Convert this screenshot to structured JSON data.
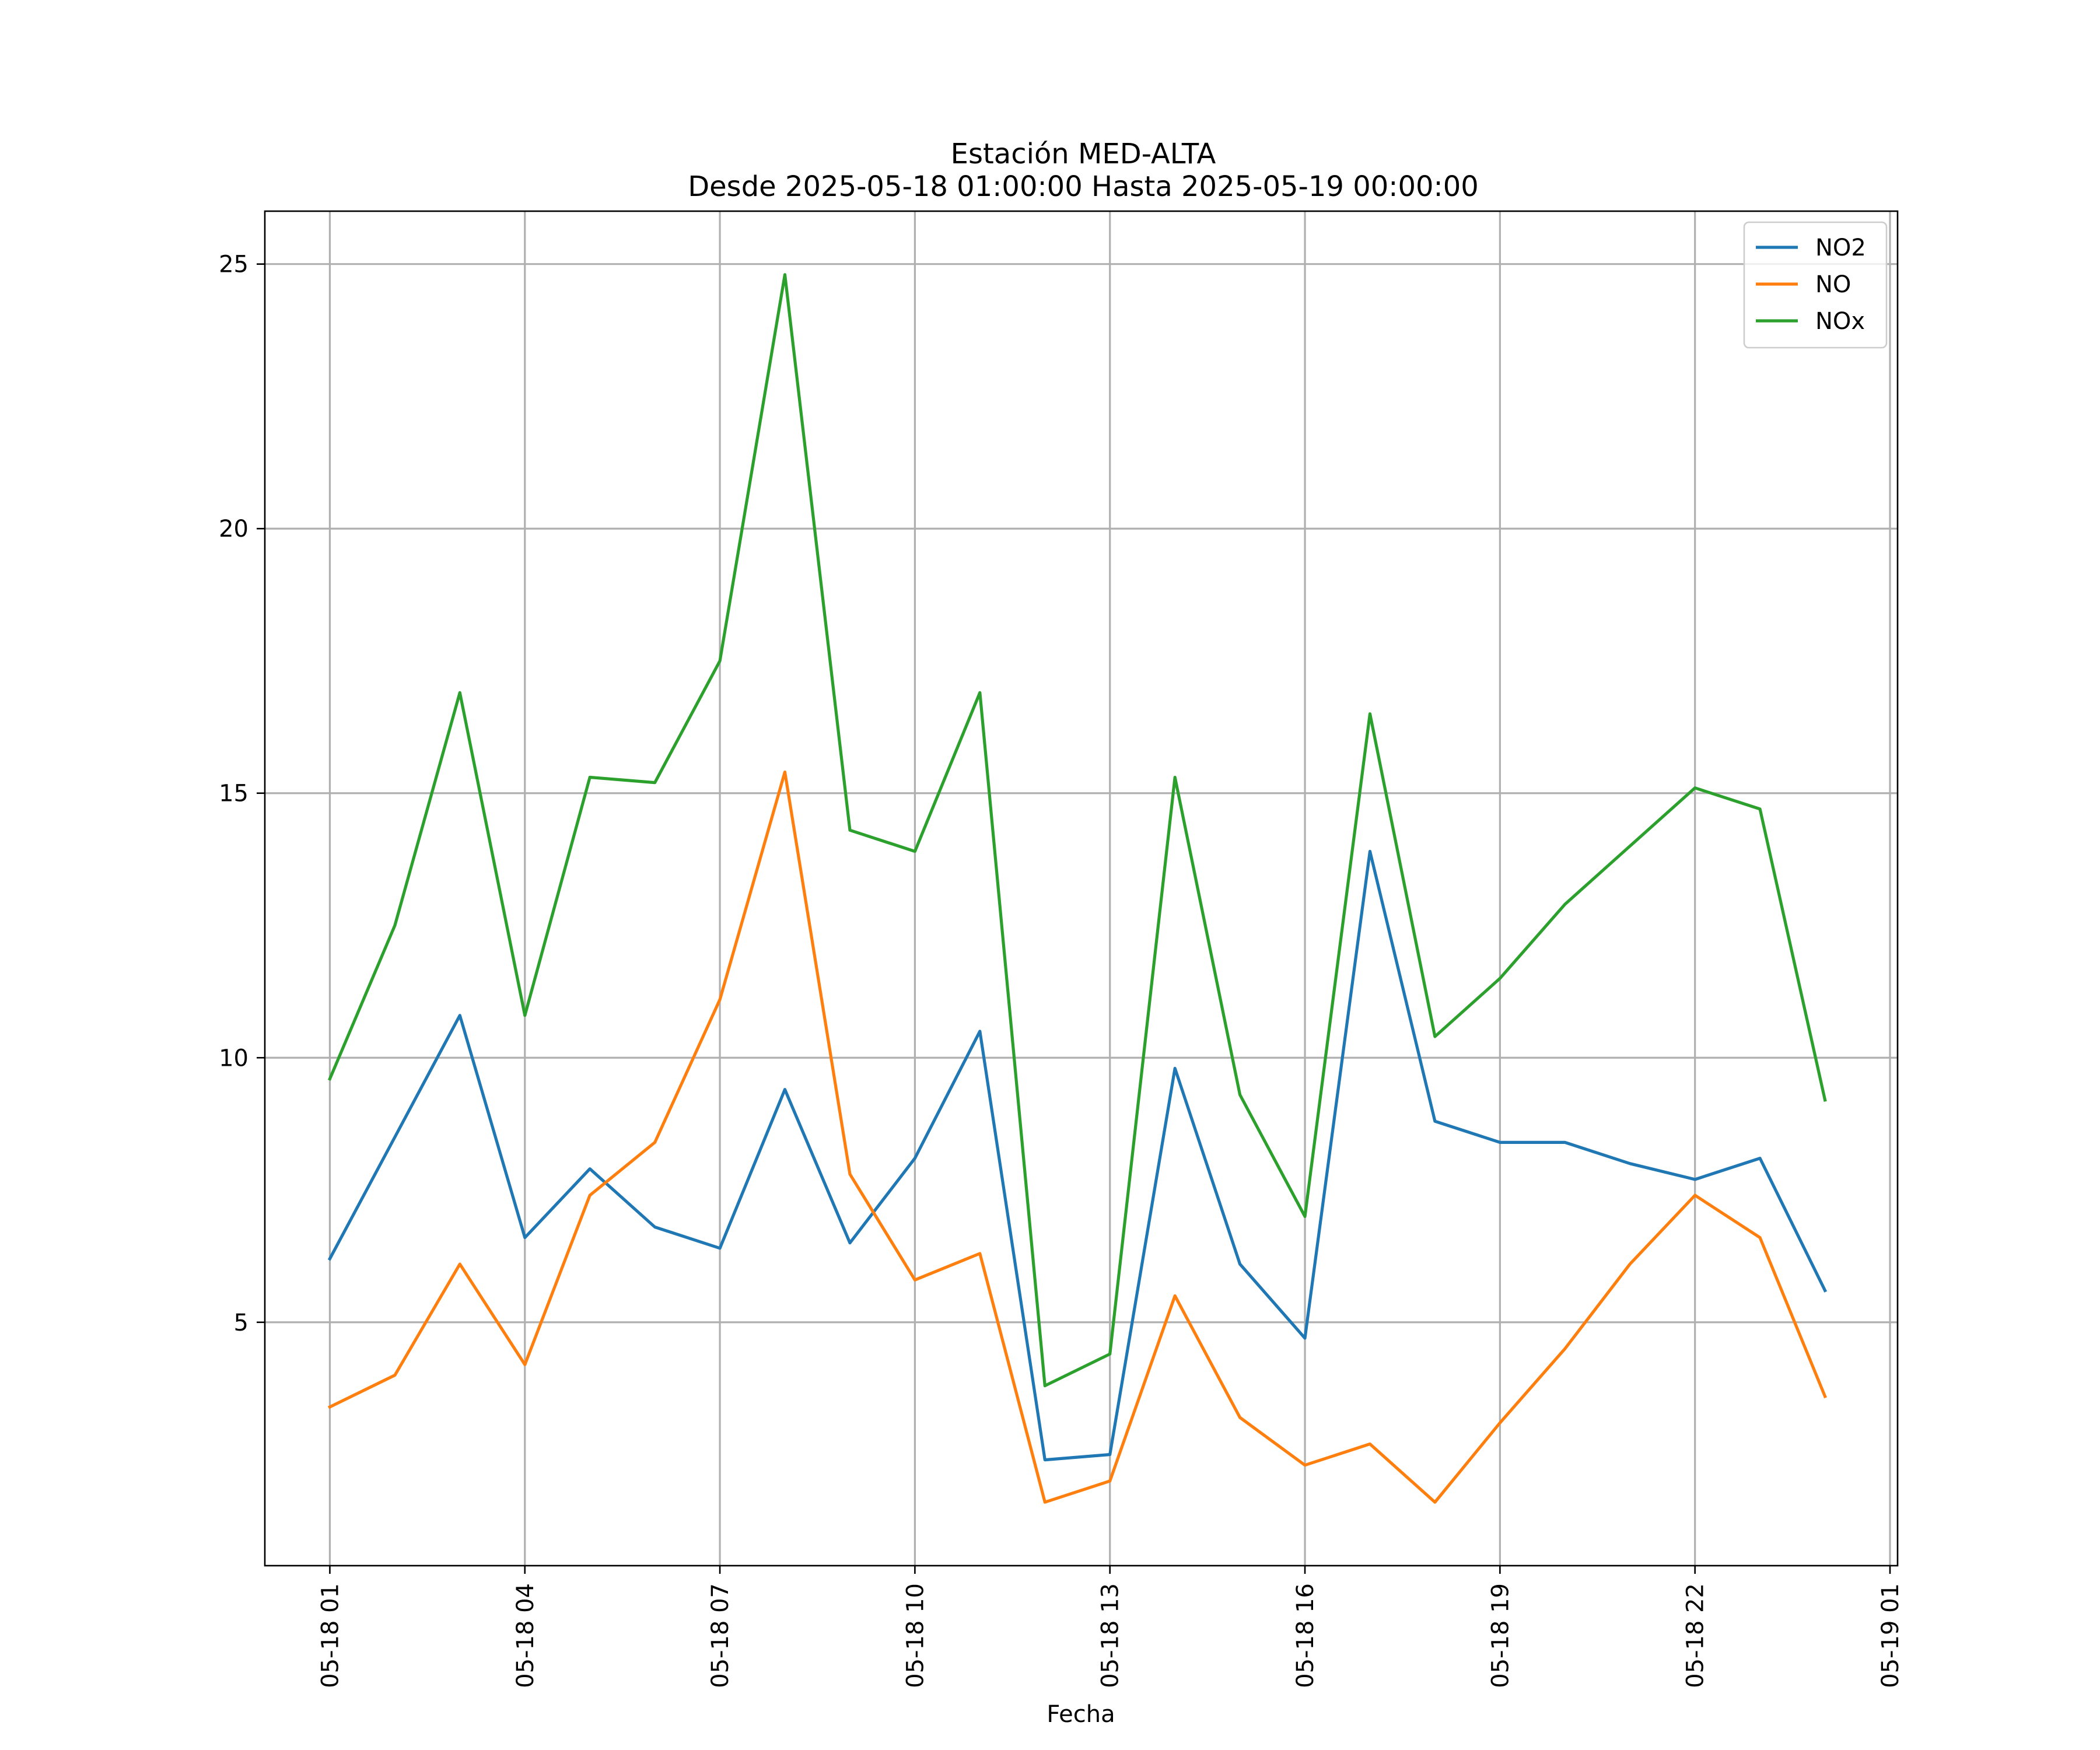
{
  "chart_data": {
    "type": "line",
    "title": "Estación MED-ALTA",
    "subtitle": "Desde 2025-05-18 01:00:00 Hasta 2025-05-19 00:00:00",
    "xlabel": "Fecha",
    "ylabel": "",
    "x": [
      "2025-05-18 01:00",
      "2025-05-18 02:00",
      "2025-05-18 03:00",
      "2025-05-18 04:00",
      "2025-05-18 05:00",
      "2025-05-18 06:00",
      "2025-05-18 07:00",
      "2025-05-18 08:00",
      "2025-05-18 09:00",
      "2025-05-18 10:00",
      "2025-05-18 11:00",
      "2025-05-18 12:00",
      "2025-05-18 13:00",
      "2025-05-18 14:00",
      "2025-05-18 15:00",
      "2025-05-18 16:00",
      "2025-05-18 17:00",
      "2025-05-18 18:00",
      "2025-05-18 19:00",
      "2025-05-18 20:00",
      "2025-05-18 21:00",
      "2025-05-18 22:00",
      "2025-05-18 23:00",
      "2025-05-19 00:00"
    ],
    "xlim": [
      "2025-05-18 00:00",
      "2025-05-19 01:07"
    ],
    "x_ticks": [
      {
        "value": "2025-05-18 01:00",
        "label": "05-18 01"
      },
      {
        "value": "2025-05-18 04:00",
        "label": "05-18 04"
      },
      {
        "value": "2025-05-18 07:00",
        "label": "05-18 07"
      },
      {
        "value": "2025-05-18 10:00",
        "label": "05-18 10"
      },
      {
        "value": "2025-05-18 13:00",
        "label": "05-18 13"
      },
      {
        "value": "2025-05-18 16:00",
        "label": "05-18 16"
      },
      {
        "value": "2025-05-18 19:00",
        "label": "05-18 19"
      },
      {
        "value": "2025-05-18 22:00",
        "label": "05-18 22"
      },
      {
        "value": "2025-05-19 01:00",
        "label": "05-19 01"
      }
    ],
    "ylim": [
      0.4,
      26.0
    ],
    "y_ticks": [
      5,
      10,
      15,
      20,
      25
    ],
    "grid": true,
    "legend_position": "top-right",
    "series": [
      {
        "name": "NO2",
        "color": "#1f77b4",
        "values": [
          6.2,
          8.5,
          10.8,
          6.6,
          7.9,
          6.8,
          6.4,
          9.4,
          6.5,
          8.1,
          10.5,
          2.4,
          2.5,
          9.8,
          6.1,
          4.7,
          13.9,
          8.8,
          8.4,
          8.4,
          8.0,
          7.7,
          8.1,
          5.6
        ]
      },
      {
        "name": "NO",
        "color": "#ff7f0e",
        "values": [
          3.4,
          4.0,
          6.1,
          4.2,
          7.4,
          8.4,
          11.1,
          15.4,
          7.8,
          5.8,
          6.3,
          1.6,
          2.0,
          5.5,
          3.2,
          2.3,
          2.7,
          1.6,
          3.1,
          4.5,
          6.1,
          7.4,
          6.6,
          3.6
        ]
      },
      {
        "name": "NOx",
        "color": "#2ca02c",
        "values": [
          9.6,
          12.5,
          16.9,
          10.8,
          15.3,
          15.2,
          17.5,
          24.8,
          14.3,
          13.9,
          16.9,
          3.8,
          4.4,
          15.3,
          9.3,
          7.0,
          16.5,
          10.4,
          11.5,
          12.9,
          14.0,
          15.1,
          14.7,
          9.2
        ]
      }
    ]
  }
}
